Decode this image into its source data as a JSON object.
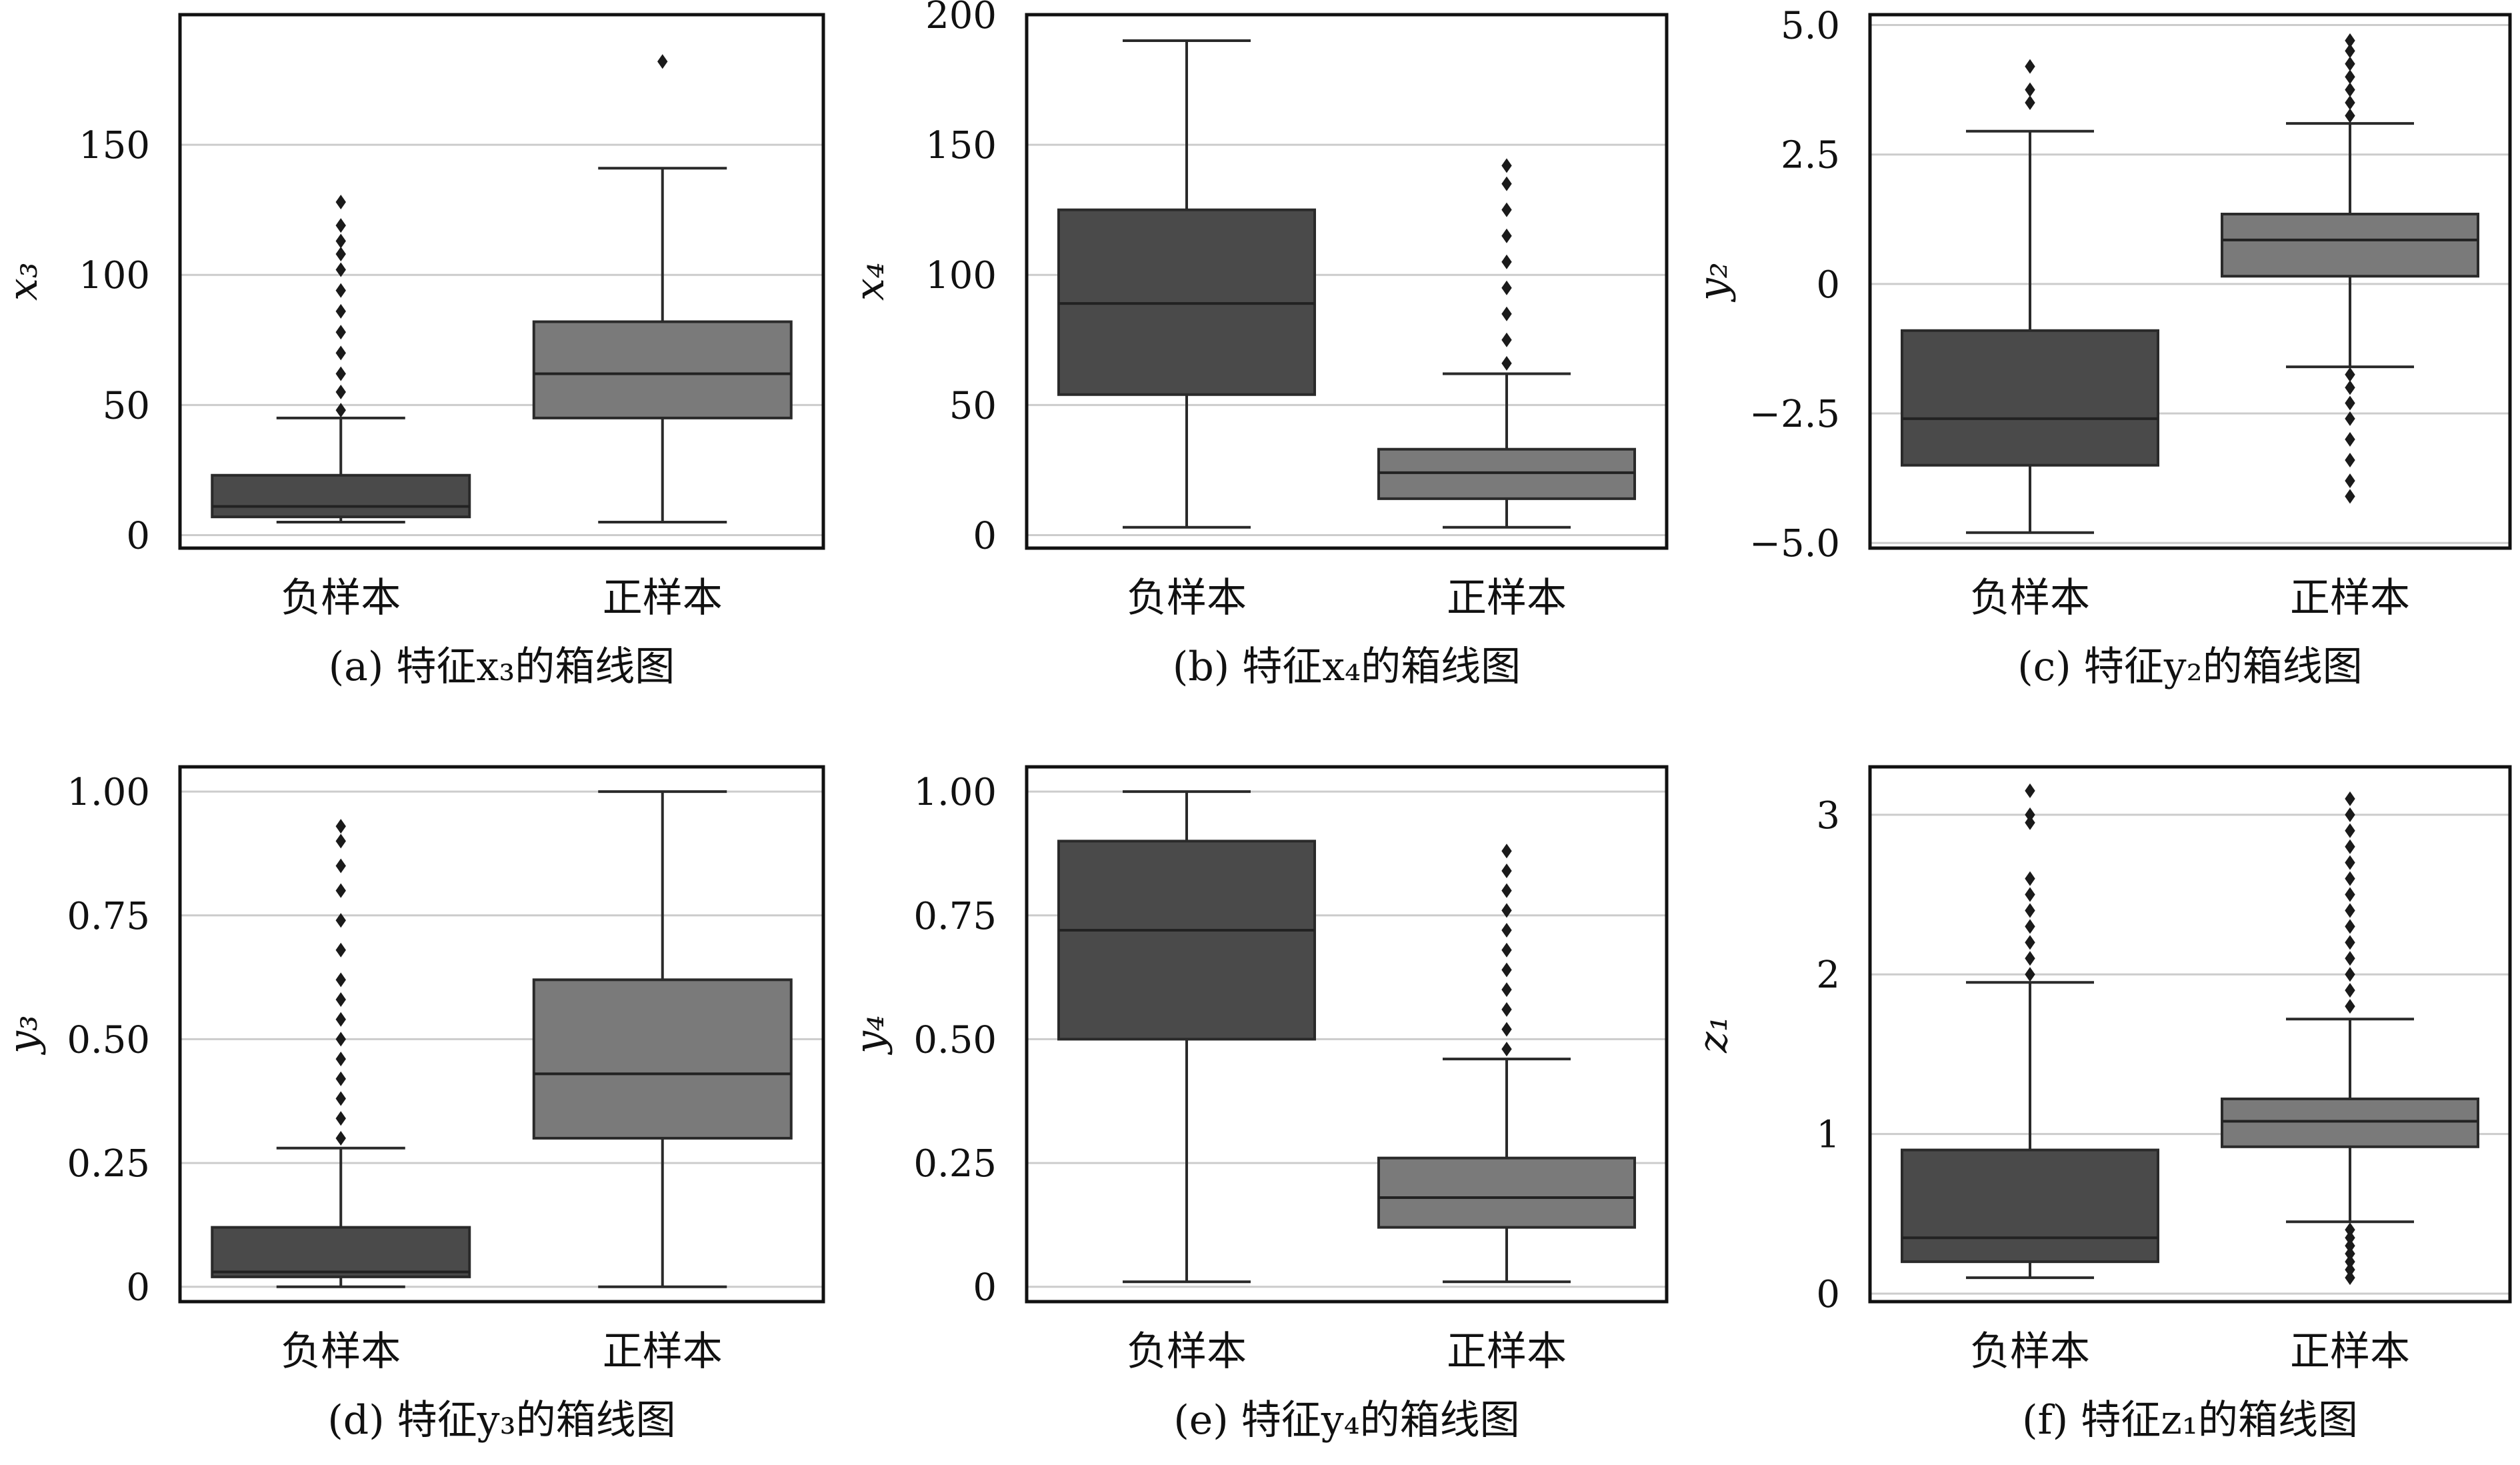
{
  "figure": {
    "colors": {
      "negative": "#4a4a4a",
      "positive": "#7a7a7a",
      "median": "#222222",
      "grid": "#cccccc",
      "frame": "#111111"
    }
  },
  "chart_data": [
    {
      "type": "boxplot",
      "caption": "(a) 特征x₃的箱线图",
      "ylabel": "x₃",
      "ylim": [
        -5,
        200
      ],
      "yticks": [
        0,
        50,
        100,
        150
      ],
      "ytick_labels": [
        "0",
        "50",
        "100",
        "150"
      ],
      "grid": true,
      "categories": [
        "负样本",
        "正样本"
      ],
      "boxes": [
        {
          "category": "负样本",
          "whisker_low": 5,
          "q1": 7,
          "median": 11,
          "q3": 23,
          "whisker_high": 45,
          "outliers": [
            48,
            55,
            62,
            70,
            78,
            86,
            94,
            102,
            108,
            113,
            119,
            128
          ]
        },
        {
          "category": "正样本",
          "whisker_low": 5,
          "q1": 45,
          "median": 62,
          "q3": 82,
          "whisker_high": 141,
          "outliers": [
            182
          ]
        }
      ]
    },
    {
      "type": "boxplot",
      "caption": "(b) 特征x₄的箱线图",
      "ylabel": "x₄",
      "ylim": [
        -5,
        200
      ],
      "yticks": [
        0,
        50,
        100,
        150,
        200
      ],
      "ytick_labels": [
        "0",
        "50",
        "100",
        "150",
        "200"
      ],
      "grid": true,
      "categories": [
        "负样本",
        "正样本"
      ],
      "boxes": [
        {
          "category": "负样本",
          "whisker_low": 3,
          "q1": 54,
          "median": 89,
          "q3": 125,
          "whisker_high": 190,
          "outliers": []
        },
        {
          "category": "正样本",
          "whisker_low": 3,
          "q1": 14,
          "median": 24,
          "q3": 33,
          "whisker_high": 62,
          "outliers": [
            66,
            75,
            85,
            95,
            105,
            115,
            125,
            135,
            142
          ]
        }
      ]
    },
    {
      "type": "boxplot",
      "caption": "(c) 特征y₂的箱线图",
      "ylabel": "y₂",
      "ylim": [
        -5.1,
        5.2
      ],
      "yticks": [
        -5,
        -2.5,
        0,
        2.5,
        5
      ],
      "ytick_labels": [
        "−5.0",
        "−2.5",
        "0",
        "2.5",
        "5.0"
      ],
      "grid": true,
      "categories": [
        "负样本",
        "正样本"
      ],
      "boxes": [
        {
          "category": "负样本",
          "whisker_low": -4.8,
          "q1": -3.5,
          "median": -2.6,
          "q3": -0.9,
          "whisker_high": 2.95,
          "outliers": [
            3.5,
            3.75,
            4.2
          ]
        },
        {
          "category": "正样本",
          "whisker_low": -1.6,
          "q1": 0.15,
          "median": 0.85,
          "q3": 1.35,
          "whisker_high": 3.1,
          "outliers": [
            -4.1,
            -3.8,
            -3.4,
            -3.0,
            -2.6,
            -2.3,
            -2.0,
            -1.75,
            3.25,
            3.5,
            3.75,
            4.0,
            4.25,
            4.5,
            4.7
          ]
        }
      ]
    },
    {
      "type": "boxplot",
      "caption": "(d) 特征y₃的箱线图",
      "ylabel": "y₃",
      "ylim": [
        -0.03,
        1.05
      ],
      "yticks": [
        0,
        0.25,
        0.5,
        0.75,
        1.0
      ],
      "ytick_labels": [
        "0",
        "0.25",
        "0.50",
        "0.75",
        "1.00"
      ],
      "grid": true,
      "categories": [
        "负样本",
        "正样本"
      ],
      "boxes": [
        {
          "category": "负样本",
          "whisker_low": 0.0,
          "q1": 0.02,
          "median": 0.03,
          "q3": 0.12,
          "whisker_high": 0.28,
          "outliers": [
            0.3,
            0.34,
            0.38,
            0.42,
            0.46,
            0.5,
            0.54,
            0.58,
            0.62,
            0.68,
            0.74,
            0.8,
            0.85,
            0.9,
            0.93
          ]
        },
        {
          "category": "正样本",
          "whisker_low": 0.0,
          "q1": 0.3,
          "median": 0.43,
          "q3": 0.62,
          "whisker_high": 1.0,
          "outliers": []
        }
      ]
    },
    {
      "type": "boxplot",
      "caption": "(e) 特征y₄的箱线图",
      "ylabel": "y₄",
      "ylim": [
        -0.03,
        1.05
      ],
      "yticks": [
        0,
        0.25,
        0.5,
        0.75,
        1.0
      ],
      "ytick_labels": [
        "0",
        "0.25",
        "0.50",
        "0.75",
        "1.00"
      ],
      "grid": true,
      "categories": [
        "负样本",
        "正样本"
      ],
      "boxes": [
        {
          "category": "负样本",
          "whisker_low": 0.01,
          "q1": 0.5,
          "median": 0.72,
          "q3": 0.9,
          "whisker_high": 1.0,
          "outliers": []
        },
        {
          "category": "正样本",
          "whisker_low": 0.01,
          "q1": 0.12,
          "median": 0.18,
          "q3": 0.26,
          "whisker_high": 0.46,
          "outliers": [
            0.48,
            0.52,
            0.56,
            0.6,
            0.64,
            0.68,
            0.72,
            0.76,
            0.8,
            0.84,
            0.88
          ]
        }
      ]
    },
    {
      "type": "boxplot",
      "caption": "(f) 特征z₁的箱线图",
      "ylabel": "z₁",
      "ylim": [
        -0.05,
        3.3
      ],
      "yticks": [
        0,
        1,
        2,
        3
      ],
      "ytick_labels": [
        "0",
        "1",
        "2",
        "3"
      ],
      "grid": true,
      "categories": [
        "负样本",
        "正样本"
      ],
      "boxes": [
        {
          "category": "负样本",
          "whisker_low": 0.1,
          "q1": 0.2,
          "median": 0.35,
          "q3": 0.9,
          "whisker_high": 1.95,
          "outliers": [
            2.0,
            2.1,
            2.2,
            2.3,
            2.4,
            2.5,
            2.6,
            2.95,
            3.0,
            3.15
          ]
        },
        {
          "category": "正样本",
          "whisker_low": 0.45,
          "q1": 0.92,
          "median": 1.08,
          "q3": 1.22,
          "whisker_high": 1.72,
          "outliers": [
            0.1,
            0.15,
            0.2,
            0.25,
            0.3,
            0.35,
            0.4,
            1.8,
            1.9,
            2.0,
            2.1,
            2.2,
            2.3,
            2.4,
            2.5,
            2.6,
            2.7,
            2.8,
            2.9,
            3.0,
            3.1
          ]
        }
      ]
    }
  ]
}
